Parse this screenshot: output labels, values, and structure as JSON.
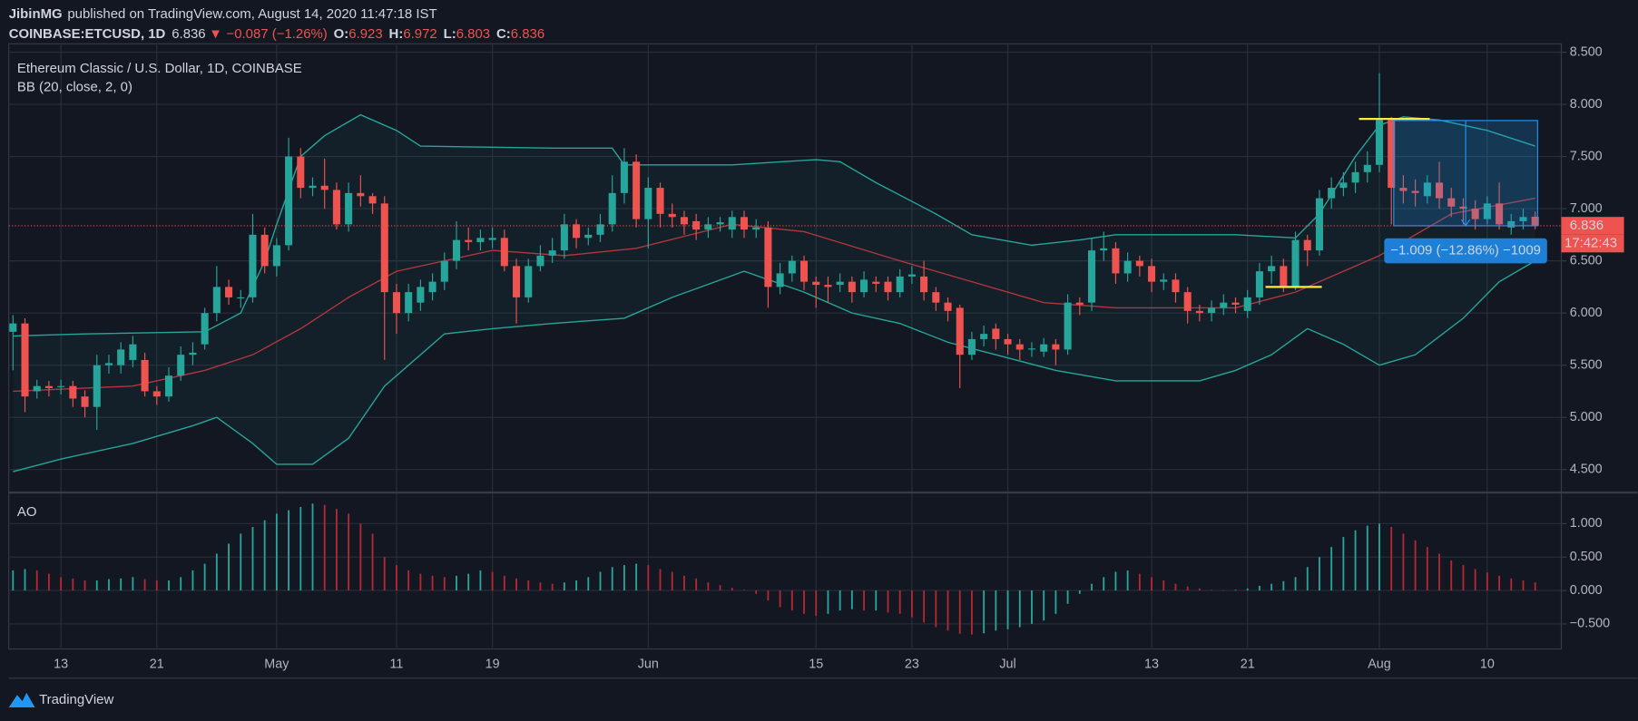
{
  "header": {
    "author": "JibinMG",
    "published": "published on TradingView.com, August 14, 2020 11:47:18 IST",
    "symbol": "COINBASE:ETCUSD, 1D",
    "last": "6.836",
    "direction": "▼",
    "change": "−0.087 (−1.26%)",
    "ohlc": [
      {
        "label": "O:",
        "value": "6.923"
      },
      {
        "label": "H:",
        "value": "6.972"
      },
      {
        "label": "L:",
        "value": "6.803"
      },
      {
        "label": "C:",
        "value": "6.836"
      }
    ]
  },
  "chart_data": [
    {
      "type": "candlestick",
      "title": "Ethereum Classic / U.S. Dollar, 1D, COINBASE",
      "indicator_label": "BB (20, close, 2, 0)",
      "categories": [
        null,
        null,
        null,
        null,
        "13",
        null,
        null,
        null,
        null,
        null,
        null,
        null,
        "21",
        null,
        null,
        null,
        null,
        null,
        null,
        null,
        null,
        null,
        "May",
        null,
        null,
        null,
        null,
        null,
        null,
        null,
        null,
        null,
        "11",
        null,
        null,
        null,
        null,
        null,
        null,
        null,
        "19",
        null,
        null,
        null,
        null,
        null,
        null,
        null,
        null,
        null,
        null,
        null,
        null,
        "Jun",
        null,
        null,
        null,
        null,
        null,
        null,
        null,
        null,
        null,
        null,
        null,
        null,
        null,
        "15",
        null,
        null,
        null,
        null,
        null,
        null,
        null,
        "23",
        null,
        null,
        null,
        null,
        null,
        null,
        null,
        "Jul",
        null,
        null,
        null,
        null,
        null,
        null,
        null,
        null,
        null,
        null,
        null,
        "13",
        null,
        null,
        null,
        null,
        null,
        null,
        null,
        "21",
        null,
        null,
        null,
        null,
        null,
        null,
        null,
        null,
        null,
        null,
        "Aug",
        null,
        null,
        null,
        null,
        null,
        null,
        null,
        null,
        "10",
        null,
        null,
        null,
        null
      ],
      "open": [
        5.82,
        5.9,
        5.25,
        5.3,
        5.3,
        5.3,
        5.2,
        5.1,
        5.5,
        5.5,
        5.55,
        5.55,
        5.25,
        5.2,
        5.4,
        5.6,
        5.7,
        6.0,
        6.25,
        6.15,
        6.15,
        6.75,
        6.45,
        6.65,
        7.5,
        7.2,
        7.22,
        7.18,
        6.85,
        7.15,
        7.12,
        7.05,
        6.2,
        6.0,
        6.1,
        6.2,
        6.3,
        6.5,
        6.7,
        6.68,
        6.7,
        6.72,
        6.45,
        6.15,
        6.45,
        6.55,
        6.6,
        6.85,
        6.72,
        6.75,
        6.85,
        7.15,
        7.45,
        6.9,
        7.2,
        6.95,
        6.92,
        6.88,
        6.8,
        6.85,
        6.8,
        6.92,
        6.8,
        6.82,
        6.25,
        6.38,
        6.5,
        6.3,
        6.27,
        6.27,
        6.3,
        6.2,
        6.3,
        6.3,
        6.2,
        6.35,
        6.35,
        6.2,
        6.1,
        6.05,
        5.6,
        5.75,
        5.85,
        5.75,
        5.7,
        5.65,
        5.63,
        5.7,
        5.65,
        6.1,
        6.1,
        6.6,
        6.62,
        6.38,
        6.5,
        6.45,
        6.3,
        6.32,
        6.2,
        6.02,
        6.0,
        6.05,
        6.1,
        6.02,
        6.15,
        6.4,
        6.45,
        6.25,
        6.7,
        6.6,
        7.1,
        7.2,
        7.25,
        7.35,
        7.42,
        7.85,
        7.2,
        7.17,
        7.12,
        7.25,
        7.1,
        7.02,
        7.0,
        6.9,
        7.05,
        6.82,
        6.88,
        6.923
      ],
      "high": [
        5.98,
        5.95,
        5.36,
        5.35,
        5.36,
        5.35,
        5.26,
        5.6,
        5.6,
        5.72,
        5.78,
        5.62,
        5.3,
        5.48,
        5.68,
        5.72,
        6.05,
        6.45,
        6.32,
        6.22,
        6.95,
        6.82,
        6.72,
        7.68,
        7.58,
        7.3,
        7.48,
        7.25,
        7.25,
        7.32,
        7.15,
        7.12,
        6.28,
        6.28,
        6.32,
        6.38,
        6.58,
        6.88,
        6.82,
        6.8,
        6.82,
        6.8,
        6.52,
        6.52,
        6.65,
        6.72,
        6.95,
        6.9,
        6.82,
        6.95,
        7.32,
        7.58,
        7.52,
        7.3,
        7.25,
        7.05,
        6.98,
        6.95,
        6.92,
        6.92,
        6.98,
        6.98,
        6.9,
        6.88,
        6.48,
        6.55,
        6.55,
        6.35,
        6.35,
        6.38,
        6.35,
        6.4,
        6.35,
        6.35,
        6.42,
        6.45,
        6.5,
        6.25,
        6.15,
        6.08,
        5.82,
        5.88,
        5.9,
        5.8,
        5.75,
        5.72,
        5.76,
        5.75,
        6.18,
        6.15,
        6.72,
        6.78,
        6.68,
        6.58,
        6.55,
        6.52,
        6.38,
        6.38,
        6.25,
        6.08,
        6.12,
        6.18,
        6.15,
        6.22,
        6.48,
        6.55,
        6.52,
        6.78,
        6.75,
        7.18,
        7.3,
        7.35,
        7.45,
        7.55,
        8.3,
        7.88,
        7.32,
        7.28,
        7.32,
        7.45,
        7.2,
        7.1,
        7.08,
        7.12,
        7.25,
        6.95,
        7.0,
        6.972
      ],
      "low": [
        5.45,
        5.05,
        5.18,
        5.2,
        5.22,
        5.1,
        5.0,
        4.88,
        5.42,
        5.42,
        5.48,
        5.2,
        5.12,
        5.15,
        5.35,
        5.5,
        5.65,
        5.92,
        6.08,
        6.05,
        6.1,
        6.38,
        6.35,
        6.6,
        7.1,
        7.12,
        7.0,
        6.8,
        6.78,
        7.02,
        6.95,
        5.55,
        5.8,
        5.92,
        6.02,
        6.12,
        6.22,
        6.42,
        6.6,
        6.6,
        6.62,
        6.4,
        5.9,
        6.1,
        6.4,
        6.48,
        6.52,
        6.62,
        6.65,
        6.68,
        6.78,
        7.05,
        6.82,
        6.62,
        6.82,
        6.82,
        6.75,
        6.7,
        6.72,
        6.78,
        6.72,
        6.72,
        6.72,
        6.05,
        6.18,
        6.3,
        6.22,
        6.05,
        6.1,
        6.2,
        6.1,
        6.15,
        6.2,
        6.12,
        6.15,
        6.28,
        6.12,
        6.02,
        5.92,
        5.28,
        5.55,
        5.68,
        5.65,
        5.6,
        5.55,
        5.58,
        5.58,
        5.5,
        5.6,
        5.98,
        6.02,
        6.5,
        6.28,
        6.3,
        6.35,
        6.2,
        6.22,
        6.1,
        5.9,
        5.92,
        5.92,
        5.98,
        6.0,
        5.95,
        6.08,
        6.28,
        6.2,
        6.22,
        6.45,
        6.55,
        7.0,
        7.12,
        7.15,
        7.25,
        7.35,
        6.85,
        7.05,
        7.02,
        7.05,
        7.0,
        6.92,
        6.85,
        6.8,
        6.85,
        6.8,
        6.75,
        6.8,
        6.803
      ],
      "close": [
        5.9,
        5.2,
        5.3,
        5.28,
        5.3,
        5.18,
        5.1,
        5.5,
        5.52,
        5.65,
        5.7,
        5.25,
        5.2,
        5.4,
        5.6,
        5.62,
        6.0,
        6.25,
        6.15,
        6.15,
        6.75,
        6.45,
        6.65,
        7.5,
        7.2,
        7.22,
        7.18,
        6.85,
        7.15,
        7.12,
        7.05,
        6.2,
        6.0,
        6.2,
        6.25,
        6.3,
        6.5,
        6.7,
        6.68,
        6.72,
        6.72,
        6.45,
        6.15,
        6.45,
        6.55,
        6.6,
        6.85,
        6.72,
        6.75,
        6.85,
        7.15,
        7.45,
        6.9,
        7.2,
        6.95,
        6.92,
        6.85,
        6.8,
        6.85,
        6.87,
        6.92,
        6.8,
        6.82,
        6.25,
        6.38,
        6.5,
        6.3,
        6.27,
        6.25,
        6.3,
        6.2,
        6.32,
        6.28,
        6.2,
        6.35,
        6.37,
        6.2,
        6.1,
        6.02,
        5.6,
        5.75,
        5.8,
        5.75,
        5.7,
        5.65,
        5.66,
        5.7,
        5.65,
        6.1,
        6.08,
        6.6,
        6.62,
        6.38,
        6.5,
        6.45,
        6.3,
        6.32,
        6.2,
        6.02,
        6.0,
        6.05,
        6.1,
        6.08,
        6.15,
        6.4,
        6.45,
        6.25,
        6.7,
        6.6,
        7.1,
        7.2,
        7.25,
        7.35,
        7.42,
        7.85,
        7.2,
        7.17,
        7.15,
        7.25,
        7.1,
        7.02,
        7.0,
        6.9,
        7.05,
        6.85,
        6.88,
        6.92,
        6.836
      ],
      "up_color": "#26a69a",
      "down_color": "#ef5350",
      "bands": [
        {
          "color": "#26a69a",
          "x": [
            0,
            6,
            16,
            19,
            21,
            22,
            24,
            26,
            29,
            32,
            34,
            45,
            50,
            51,
            60,
            67,
            69,
            72,
            77,
            80,
            85,
            89,
            92,
            102,
            107,
            109,
            112,
            114,
            116,
            119,
            123,
            127
          ],
          "values": [
            5.78,
            5.8,
            5.82,
            6.0,
            6.5,
            6.85,
            7.5,
            7.7,
            7.9,
            7.75,
            7.6,
            7.58,
            7.58,
            7.42,
            7.42,
            7.47,
            7.45,
            7.25,
            6.95,
            6.75,
            6.65,
            6.7,
            6.75,
            6.75,
            6.72,
            6.95,
            7.5,
            7.8,
            7.88,
            7.85,
            7.75,
            7.6
          ]
        },
        {
          "color": "#26a69a",
          "x": [
            0,
            4,
            10,
            15,
            17,
            20,
            22,
            25,
            28,
            31,
            36,
            40,
            45,
            51,
            55,
            61,
            66,
            70,
            74,
            78,
            82,
            87,
            92,
            99,
            102,
            105,
            108,
            111,
            114,
            117,
            121,
            124,
            127
          ],
          "values": [
            4.48,
            4.6,
            4.75,
            4.92,
            5.0,
            4.75,
            4.55,
            4.55,
            4.8,
            5.3,
            5.8,
            5.85,
            5.9,
            5.95,
            6.15,
            6.4,
            6.2,
            6.0,
            5.9,
            5.72,
            5.6,
            5.45,
            5.35,
            5.35,
            5.45,
            5.6,
            5.85,
            5.7,
            5.5,
            5.6,
            5.95,
            6.3,
            6.5
          ]
        },
        {
          "color": "#b2373c",
          "x": [
            0,
            10,
            16,
            20,
            24,
            28,
            32,
            40,
            46,
            52,
            60,
            66,
            74,
            80,
            86,
            92,
            102,
            107,
            114,
            120,
            127
          ],
          "values": [
            5.25,
            5.3,
            5.45,
            5.6,
            5.85,
            6.15,
            6.4,
            6.6,
            6.55,
            6.62,
            6.85,
            6.78,
            6.5,
            6.3,
            6.1,
            6.05,
            6.05,
            6.2,
            6.55,
            6.95,
            7.1
          ]
        }
      ],
      "band_fill": "#26a69a",
      "last_label": "6.836",
      "countdown": "17:42:43",
      "measure": {
        "x": [
          115.2,
          127.2
        ],
        "y": [
          7.845,
          6.836
        ],
        "label": "−1.009 (−12.86%) −1009",
        "color": "#2196f3"
      },
      "hlines": [
        {
          "y": 7.86,
          "x": [
            112.3,
            118.2
          ],
          "color": "#ffeb3b"
        },
        {
          "y": 6.25,
          "x": [
            104.5,
            109.2
          ],
          "color": "#ffeb3b"
        }
      ],
      "ylim": [
        4.29,
        8.58
      ],
      "yticks": [
        {
          "value": 4.5,
          "label": "4.500"
        },
        {
          "value": 5,
          "label": "5.000"
        },
        {
          "value": 5.5,
          "label": "5.500"
        },
        {
          "value": 6,
          "label": "6.000"
        },
        {
          "value": 6.5,
          "label": "6.500"
        },
        {
          "value": 7,
          "label": "7.000"
        },
        {
          "value": 7.5,
          "label": "7.500"
        },
        {
          "value": 8,
          "label": "8.000"
        },
        {
          "value": 8.5,
          "label": "8.500"
        }
      ],
      "grid": true
    },
    {
      "type": "bar",
      "title": "AO",
      "values": [
        0.3,
        0.32,
        0.3,
        0.25,
        0.2,
        0.18,
        0.15,
        0.15,
        0.17,
        0.18,
        0.2,
        0.17,
        0.15,
        0.15,
        0.2,
        0.3,
        0.4,
        0.55,
        0.7,
        0.85,
        0.95,
        1.05,
        1.15,
        1.2,
        1.25,
        1.3,
        1.28,
        1.22,
        1.15,
        1.0,
        0.85,
        0.5,
        0.38,
        0.3,
        0.25,
        0.22,
        0.2,
        0.22,
        0.25,
        0.3,
        0.28,
        0.22,
        0.18,
        0.15,
        0.12,
        0.1,
        0.12,
        0.15,
        0.2,
        0.28,
        0.35,
        0.38,
        0.4,
        0.38,
        0.32,
        0.28,
        0.22,
        0.18,
        0.12,
        0.08,
        0.04,
        0.01,
        -0.05,
        -0.15,
        -0.25,
        -0.3,
        -0.35,
        -0.38,
        -0.35,
        -0.3,
        -0.28,
        -0.3,
        -0.3,
        -0.33,
        -0.35,
        -0.4,
        -0.48,
        -0.55,
        -0.6,
        -0.65,
        -0.66,
        -0.64,
        -0.6,
        -0.58,
        -0.55,
        -0.5,
        -0.45,
        -0.35,
        -0.2,
        -0.05,
        0.1,
        0.2,
        0.28,
        0.3,
        0.25,
        0.2,
        0.15,
        0.1,
        0.06,
        0.03,
        0.01,
        0.0,
        0.01,
        0.03,
        0.07,
        0.1,
        0.14,
        0.2,
        0.35,
        0.5,
        0.65,
        0.8,
        0.9,
        0.97,
        1.0,
        0.95,
        0.85,
        0.75,
        0.65,
        0.55,
        0.45,
        0.38,
        0.32,
        0.27,
        0.22,
        0.18,
        0.15,
        0.12
      ],
      "up_color": "#26a69a",
      "down_color": "#b22833",
      "ylim": [
        -0.86,
        1.45
      ],
      "yticks": [
        {
          "value": -0.5,
          "label": "−0.500"
        },
        {
          "value": 0,
          "label": "0.000"
        },
        {
          "value": 0.5,
          "label": "0.500"
        },
        {
          "value": 1,
          "label": "1.000"
        }
      ],
      "grid": true
    }
  ],
  "footer": {
    "brand": "TradingView"
  }
}
